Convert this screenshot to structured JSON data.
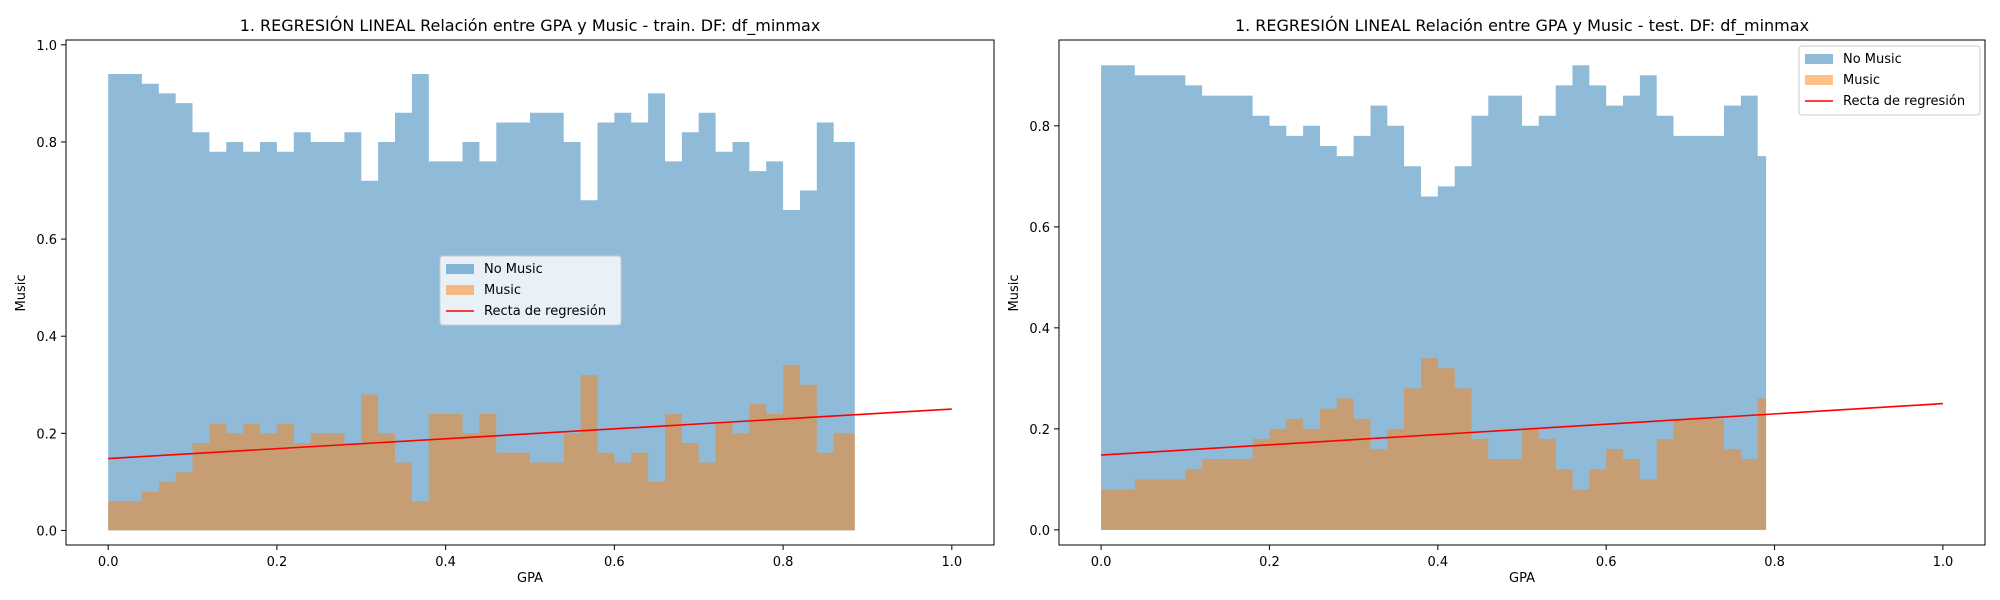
{
  "chart_data": [
    {
      "type": "area",
      "title": "1. REGRESIÓN LINEAL Relación entre GPA y Music - train. DF: df_minmax",
      "xlabel": "GPA",
      "ylabel": "Music",
      "xlim": [
        -0.05,
        1.05
      ],
      "ylim": [
        -0.03,
        1.01
      ],
      "xticks": [
        "0.0",
        "0.2",
        "0.4",
        "0.6",
        "0.8",
        "1.0"
      ],
      "yticks": [
        "0.0",
        "0.2",
        "0.4",
        "0.6",
        "0.8",
        "1.0"
      ],
      "legend_position": "center",
      "legend": [
        "No Music",
        "Music",
        "Recta de regresión"
      ],
      "colors": {
        "no_music": "#1f77b4",
        "music": "#ff7f0e",
        "regression": "#ff0000"
      },
      "x": [
        0.0,
        0.02,
        0.04,
        0.06,
        0.08,
        0.1,
        0.12,
        0.14,
        0.16,
        0.18,
        0.2,
        0.22,
        0.24,
        0.26,
        0.28,
        0.3,
        0.32,
        0.34,
        0.36,
        0.38,
        0.4,
        0.42,
        0.44,
        0.46,
        0.48,
        0.5,
        0.52,
        0.54,
        0.56,
        0.58,
        0.6,
        0.62,
        0.64,
        0.66,
        0.68,
        0.7,
        0.72,
        0.74,
        0.76,
        0.78,
        0.8,
        0.82,
        0.84,
        0.86,
        0.885
      ],
      "series": [
        {
          "name": "No Music",
          "values": [
            0.94,
            0.94,
            0.92,
            0.9,
            0.88,
            0.82,
            0.78,
            0.8,
            0.78,
            0.8,
            0.78,
            0.82,
            0.8,
            0.8,
            0.82,
            0.72,
            0.8,
            0.86,
            0.94,
            0.76,
            0.76,
            0.8,
            0.76,
            0.84,
            0.84,
            0.86,
            0.86,
            0.8,
            0.68,
            0.84,
            0.86,
            0.84,
            0.9,
            0.76,
            0.82,
            0.86,
            0.78,
            0.8,
            0.74,
            0.76,
            0.66,
            0.7,
            0.84,
            0.8,
            0.76
          ]
        },
        {
          "name": "Music",
          "values": [
            0.06,
            0.06,
            0.08,
            0.1,
            0.12,
            0.18,
            0.22,
            0.2,
            0.22,
            0.2,
            0.22,
            0.18,
            0.2,
            0.2,
            0.18,
            0.28,
            0.2,
            0.14,
            0.06,
            0.24,
            0.24,
            0.2,
            0.24,
            0.16,
            0.16,
            0.14,
            0.14,
            0.2,
            0.32,
            0.16,
            0.14,
            0.16,
            0.1,
            0.24,
            0.18,
            0.14,
            0.22,
            0.2,
            0.26,
            0.24,
            0.34,
            0.3,
            0.16,
            0.2,
            0.24
          ]
        }
      ],
      "regression": {
        "x": [
          0.0,
          1.0
        ],
        "y": [
          0.148,
          0.25
        ]
      }
    },
    {
      "type": "area",
      "title": "1. REGRESIÓN LINEAL Relación entre GPA y Music - test. DF: df_minmax",
      "xlabel": "GPA",
      "ylabel": "Music",
      "xlim": [
        -0.05,
        1.05
      ],
      "ylim": [
        -0.03,
        0.97
      ],
      "xticks": [
        "0.0",
        "0.2",
        "0.4",
        "0.6",
        "0.8",
        "1.0"
      ],
      "yticks": [
        "0.0",
        "0.2",
        "0.4",
        "0.6",
        "0.8"
      ],
      "legend_position": "upper right",
      "legend": [
        "No Music",
        "Music",
        "Recta de regresión"
      ],
      "colors": {
        "no_music": "#1f77b4",
        "music": "#ff7f0e",
        "regression": "#ff0000"
      },
      "x": [
        0.0,
        0.02,
        0.04,
        0.06,
        0.08,
        0.1,
        0.12,
        0.14,
        0.16,
        0.18,
        0.2,
        0.22,
        0.24,
        0.26,
        0.28,
        0.3,
        0.32,
        0.34,
        0.36,
        0.38,
        0.4,
        0.42,
        0.44,
        0.46,
        0.48,
        0.5,
        0.52,
        0.54,
        0.56,
        0.58,
        0.6,
        0.62,
        0.64,
        0.66,
        0.68,
        0.7,
        0.72,
        0.74,
        0.76,
        0.78,
        0.79
      ],
      "series": [
        {
          "name": "No Music",
          "values": [
            0.92,
            0.92,
            0.9,
            0.9,
            0.9,
            0.88,
            0.86,
            0.86,
            0.86,
            0.82,
            0.8,
            0.78,
            0.8,
            0.76,
            0.74,
            0.78,
            0.84,
            0.8,
            0.72,
            0.66,
            0.68,
            0.72,
            0.82,
            0.86,
            0.86,
            0.8,
            0.82,
            0.88,
            0.92,
            0.88,
            0.84,
            0.86,
            0.9,
            0.82,
            0.78,
            0.78,
            0.78,
            0.84,
            0.86,
            0.74,
            0.64
          ]
        },
        {
          "name": "Music",
          "values": [
            0.08,
            0.08,
            0.1,
            0.1,
            0.1,
            0.12,
            0.14,
            0.14,
            0.14,
            0.18,
            0.2,
            0.22,
            0.2,
            0.24,
            0.26,
            0.22,
            0.16,
            0.2,
            0.28,
            0.34,
            0.32,
            0.28,
            0.18,
            0.14,
            0.14,
            0.2,
            0.18,
            0.12,
            0.08,
            0.12,
            0.16,
            0.14,
            0.1,
            0.18,
            0.22,
            0.22,
            0.22,
            0.16,
            0.14,
            0.26,
            0.36
          ]
        }
      ],
      "regression": {
        "x": [
          0.0,
          1.0
        ],
        "y": [
          0.148,
          0.25
        ]
      }
    }
  ]
}
